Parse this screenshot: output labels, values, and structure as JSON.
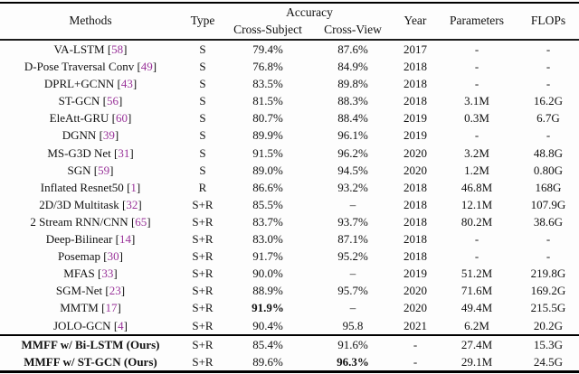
{
  "table": {
    "headers": {
      "methods": "Methods",
      "type": "Type",
      "accuracy": "Accuracy",
      "cross_subject": "Cross-Subject",
      "cross_view": "Cross-View",
      "year": "Year",
      "parameters": "Parameters",
      "flops": "FLOPs"
    },
    "citation_color": "#993399",
    "rows": [
      {
        "method": "VA-LSTM",
        "cite": "58",
        "type": "S",
        "cross_subject": "79.4%",
        "cross_view": "87.6%",
        "year": "2017",
        "params": "-",
        "flops": "-"
      },
      {
        "method": "D-Pose Traversal Conv",
        "cite": "49",
        "type": "S",
        "cross_subject": "76.8%",
        "cross_view": "84.9%",
        "year": "2018",
        "params": "-",
        "flops": "-"
      },
      {
        "method": "DPRL+GCNN",
        "cite": "43",
        "type": "S",
        "cross_subject": "83.5%",
        "cross_view": "89.8%",
        "year": "2018",
        "params": "-",
        "flops": "-"
      },
      {
        "method": "ST-GCN",
        "cite": "56",
        "type": "S",
        "cross_subject": "81.5%",
        "cross_view": "88.3%",
        "year": "2018",
        "params": "3.1M",
        "flops": "16.2G"
      },
      {
        "method": "EleAtt-GRU",
        "cite": "60",
        "type": "S",
        "cross_subject": "80.7%",
        "cross_view": "88.4%",
        "year": "2019",
        "params": "0.3M",
        "flops": "6.7G"
      },
      {
        "method": "DGNN",
        "cite": "39",
        "type": "S",
        "cross_subject": "89.9%",
        "cross_view": "96.1%",
        "year": "2019",
        "params": "-",
        "flops": "-"
      },
      {
        "method": "MS-G3D Net",
        "cite": "31",
        "type": "S",
        "cross_subject": "91.5%",
        "cross_view": "96.2%",
        "year": "2020",
        "params": "3.2M",
        "flops": "48.8G"
      },
      {
        "method": "SGN",
        "cite": "59",
        "type": "S",
        "cross_subject": "89.0%",
        "cross_view": "94.5%",
        "year": "2020",
        "params": "1.2M",
        "flops": "0.80G"
      },
      {
        "method": "Inflated Resnet50",
        "cite": "1",
        "type": "R",
        "cross_subject": "86.6%",
        "cross_view": "93.2%",
        "year": "2018",
        "params": "46.8M",
        "flops": "168G"
      },
      {
        "method": "2D/3D Multitask",
        "cite": "32",
        "type": "S+R",
        "cross_subject": "85.5%",
        "cross_view": "–",
        "year": "2018",
        "params": "12.1M",
        "flops": "107.9G"
      },
      {
        "method": "2 Stream RNN/CNN",
        "cite": "65",
        "type": "S+R",
        "cross_subject": "83.7%",
        "cross_view": "93.7%",
        "year": "2018",
        "params": "80.2M",
        "flops": "38.6G"
      },
      {
        "method": "Deep-Bilinear",
        "cite": "14",
        "type": "S+R",
        "cross_subject": "83.0%",
        "cross_view": "87.1%",
        "year": "2018",
        "params": "-",
        "flops": "-"
      },
      {
        "method": "Posemap",
        "cite": "30",
        "type": "S+R",
        "cross_subject": "91.7%",
        "cross_view": "95.2%",
        "year": "2018",
        "params": "-",
        "flops": "-"
      },
      {
        "method": "MFAS",
        "cite": "33",
        "type": "S+R",
        "cross_subject": "90.0%",
        "cross_view": "–",
        "year": "2019",
        "params": "51.2M",
        "flops": "219.8G"
      },
      {
        "method": "SGM-Net",
        "cite": "23",
        "type": "S+R",
        "cross_subject": "88.9%",
        "cross_view": "95.7%",
        "year": "2020",
        "params": "71.6M",
        "flops": "169.2G"
      },
      {
        "method": "MMTM",
        "cite": "17",
        "type": "S+R",
        "cross_subject": "91.9%",
        "cs_bold": true,
        "cross_view": "–",
        "year": "2020",
        "params": "49.4M",
        "flops": "215.5G"
      },
      {
        "method": "JOLO-GCN",
        "cite": "4",
        "type": "S+R",
        "cross_subject": "90.4%",
        "cross_view": "95.8",
        "year": "2021",
        "params": "6.2M",
        "flops": "20.2G"
      }
    ],
    "ours_rows": [
      {
        "method": "MMFF w/ Bi-LSTM (Ours)",
        "method_bold": true,
        "type": "S+R",
        "cross_subject": "85.4%",
        "cross_view": "91.6%",
        "year": "-",
        "params": "27.4M",
        "flops": "15.3G"
      },
      {
        "method": "MMFF w/ ST-GCN (Ours)",
        "method_bold": true,
        "type": "S+R",
        "cross_subject": "89.6%",
        "cross_view": "96.3%",
        "cv_bold": true,
        "year": "-",
        "params": "29.1M",
        "flops": "24.5G"
      }
    ]
  }
}
